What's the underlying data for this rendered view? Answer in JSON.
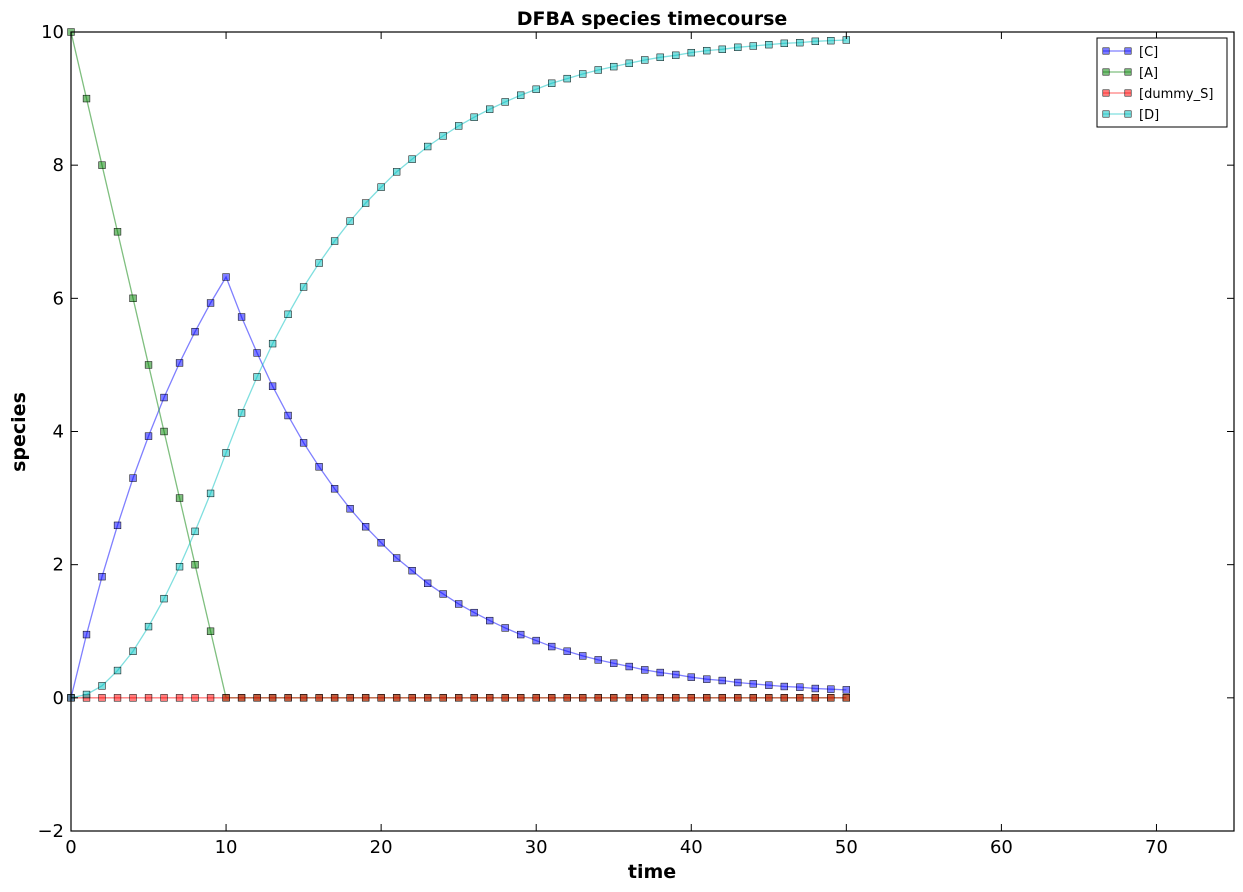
{
  "chart_data": {
    "type": "line",
    "title": "DFBA species timecourse",
    "xlabel": "time",
    "ylabel": "species",
    "xlim": [
      0,
      75
    ],
    "ylim": [
      -2,
      10
    ],
    "xticks": [
      "0",
      "10",
      "20",
      "30",
      "40",
      "50",
      "60",
      "70"
    ],
    "yticks": [
      "−2",
      "0",
      "2",
      "4",
      "6",
      "8",
      "10"
    ],
    "grid": false,
    "legend_position": "top-right",
    "marker": "square",
    "x": [
      0,
      1,
      2,
      3,
      4,
      5,
      6,
      7,
      8,
      9,
      10,
      11,
      12,
      13,
      14,
      15,
      16,
      17,
      18,
      19,
      20,
      21,
      22,
      23,
      24,
      25,
      26,
      27,
      28,
      29,
      30,
      31,
      32,
      33,
      34,
      35,
      36,
      37,
      38,
      39,
      40,
      41,
      42,
      43,
      44,
      45,
      46,
      47,
      48,
      49,
      50
    ],
    "series": [
      {
        "name": "[C]",
        "color": "#0000ff",
        "values": [
          0,
          0.95,
          1.82,
          2.59,
          3.3,
          3.93,
          4.51,
          5.03,
          5.5,
          5.93,
          6.32,
          5.72,
          5.18,
          4.68,
          4.24,
          3.83,
          3.47,
          3.14,
          2.84,
          2.57,
          2.33,
          2.1,
          1.91,
          1.72,
          1.56,
          1.41,
          1.28,
          1.16,
          1.05,
          0.95,
          0.86,
          0.77,
          0.7,
          0.63,
          0.57,
          0.52,
          0.47,
          0.42,
          0.38,
          0.35,
          0.31,
          0.28,
          0.26,
          0.23,
          0.21,
          0.19,
          0.17,
          0.16,
          0.14,
          0.13,
          0.12
        ]
      },
      {
        "name": "[A]",
        "color": "#008000",
        "values": [
          10,
          9,
          8,
          7,
          6,
          5,
          4,
          3,
          2,
          1,
          0,
          0,
          0,
          0,
          0,
          0,
          0,
          0,
          0,
          0,
          0,
          0,
          0,
          0,
          0,
          0,
          0,
          0,
          0,
          0,
          0,
          0,
          0,
          0,
          0,
          0,
          0,
          0,
          0,
          0,
          0,
          0,
          0,
          0,
          0,
          0,
          0,
          0,
          0,
          0,
          0
        ]
      },
      {
        "name": "[dummy_S]",
        "color": "#ff0000",
        "values": [
          0,
          0,
          0,
          0,
          0,
          0,
          0,
          0,
          0,
          0,
          0,
          0,
          0,
          0,
          0,
          0,
          0,
          0,
          0,
          0,
          0,
          0,
          0,
          0,
          0,
          0,
          0,
          0,
          0,
          0,
          0,
          0,
          0,
          0,
          0,
          0,
          0,
          0,
          0,
          0,
          0,
          0,
          0,
          0,
          0,
          0,
          0,
          0,
          0,
          0,
          0
        ]
      },
      {
        "name": "[D]",
        "color": "#00bfbf",
        "values": [
          0,
          0.05,
          0.18,
          0.41,
          0.7,
          1.07,
          1.49,
          1.97,
          2.5,
          3.07,
          3.68,
          4.28,
          4.82,
          5.32,
          5.76,
          6.17,
          6.53,
          6.86,
          7.16,
          7.43,
          7.67,
          7.9,
          8.09,
          8.28,
          8.44,
          8.59,
          8.72,
          8.84,
          8.95,
          9.05,
          9.14,
          9.23,
          9.3,
          9.37,
          9.43,
          9.48,
          9.53,
          9.58,
          9.62,
          9.65,
          9.69,
          9.72,
          9.74,
          9.77,
          9.79,
          9.81,
          9.83,
          9.84,
          9.86,
          9.87,
          9.88
        ]
      }
    ]
  }
}
